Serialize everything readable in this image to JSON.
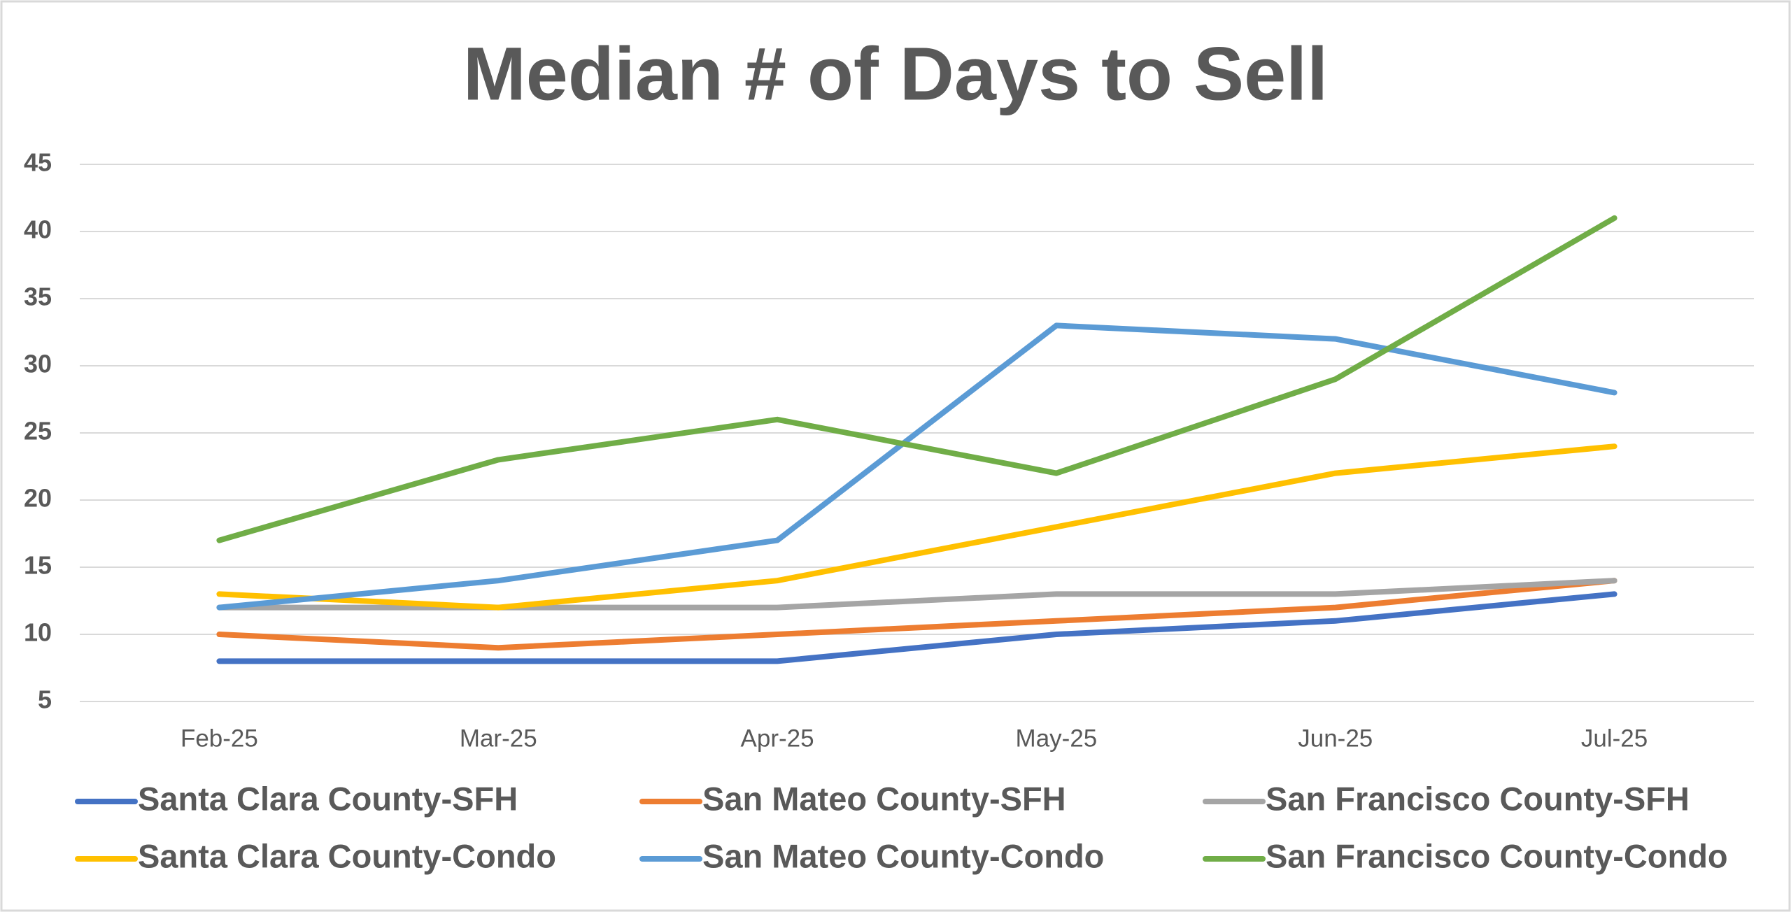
{
  "chart_data": {
    "type": "line",
    "title": "Median # of Days to Sell",
    "categories": [
      "Feb-25",
      "Mar-25",
      "Apr-25",
      "May-25",
      "Jun-25",
      "Jul-25"
    ],
    "series": [
      {
        "name": "Santa Clara County-SFH",
        "color": "#4472c4",
        "values": [
          8,
          8,
          8,
          10,
          11,
          13
        ]
      },
      {
        "name": "San Mateo County-SFH",
        "color": "#ed7d31",
        "values": [
          10,
          9,
          10,
          11,
          12,
          14
        ]
      },
      {
        "name": "San Francisco County-SFH",
        "color": "#a5a5a5",
        "values": [
          12,
          12,
          12,
          13,
          13,
          14
        ]
      },
      {
        "name": "Santa Clara County-Condo",
        "color": "#ffc000",
        "values": [
          13,
          12,
          14,
          18,
          22,
          24
        ]
      },
      {
        "name": "San Mateo County-Condo",
        "color": "#5b9bd5",
        "values": [
          12,
          14,
          17,
          33,
          32,
          28
        ]
      },
      {
        "name": "San Francisco County-Condo",
        "color": "#70ad47",
        "values": [
          17,
          23,
          26,
          22,
          29,
          41
        ]
      }
    ],
    "ylim": [
      5,
      45
    ],
    "yticks": [
      5,
      10,
      15,
      20,
      25,
      30,
      35,
      40,
      45
    ],
    "grid": true,
    "legend": "bottom"
  }
}
